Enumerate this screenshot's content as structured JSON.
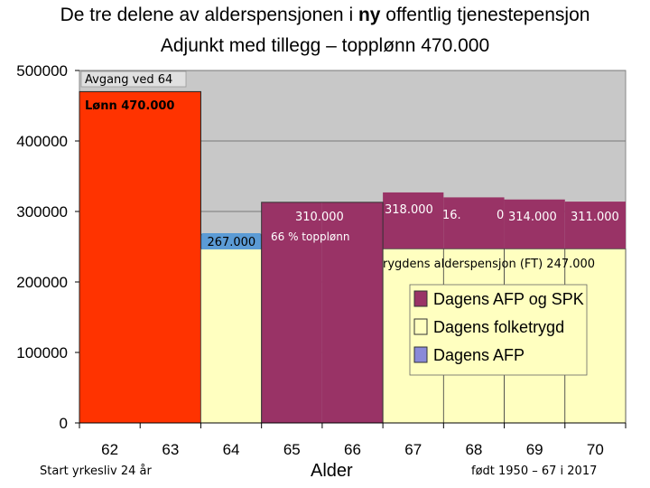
{
  "title": {
    "part1": "De tre delene av alderspensjonen i ",
    "bold": "ny",
    "part2": " offentlig tjenestepensjon",
    "line2": "Adjunkt med tillegg – topplønn 470.000"
  },
  "x_axis_title": "Alder",
  "footer_left": "Start yrkesliv 24 år",
  "footer_right": "født 1950 – 67 i 2017",
  "colors": {
    "salary": "#ff3300",
    "afp_spk": "#993366",
    "folketrygd": "#ffffc0",
    "afp": "#8a8ad8",
    "plot_bg": "#c8c8c8"
  },
  "chart_data": {
    "type": "bar",
    "categories": [
      "62",
      "63",
      "64",
      "65",
      "66",
      "67",
      "68",
      "69",
      "70"
    ],
    "ylim": [
      0,
      500000
    ],
    "yticks": [
      "0",
      "100000",
      "200000",
      "300000",
      "400000",
      "500000"
    ],
    "grid": true,
    "salary_bar": {
      "years": [
        "62",
        "63"
      ],
      "value": 470000
    },
    "series": [
      {
        "name": "Dagens AFP og SPK",
        "values": [
          null,
          null,
          null,
          313000,
          313000,
          327000,
          320000,
          317000,
          314000
        ]
      },
      {
        "name": "Dagens folketrygd",
        "values": [
          null,
          null,
          247000,
          0,
          0,
          247000,
          247000,
          247000,
          247000
        ]
      },
      {
        "name": "Dagens AFP",
        "values": [
          null,
          null,
          267000,
          null,
          null,
          null,
          null,
          null,
          null
        ]
      }
    ],
    "legend": {
      "placement": "lower-right",
      "entries": [
        "Dagens AFP og SPK",
        "Dagens folketrygd",
        "Dagens AFP"
      ]
    },
    "annotations": {
      "avgang": "Avgang ved 64",
      "lonn": "Lønn 470.000",
      "v267": "267.000",
      "v310": "310.000",
      "topp66": "66 % topplønn",
      "v318": "318.000",
      "v16": "16.",
      "v0": "0",
      "v314": "314.000",
      "v311": "311.000",
      "ft": "rygdens alderspensjon (FT) 247.000"
    }
  }
}
